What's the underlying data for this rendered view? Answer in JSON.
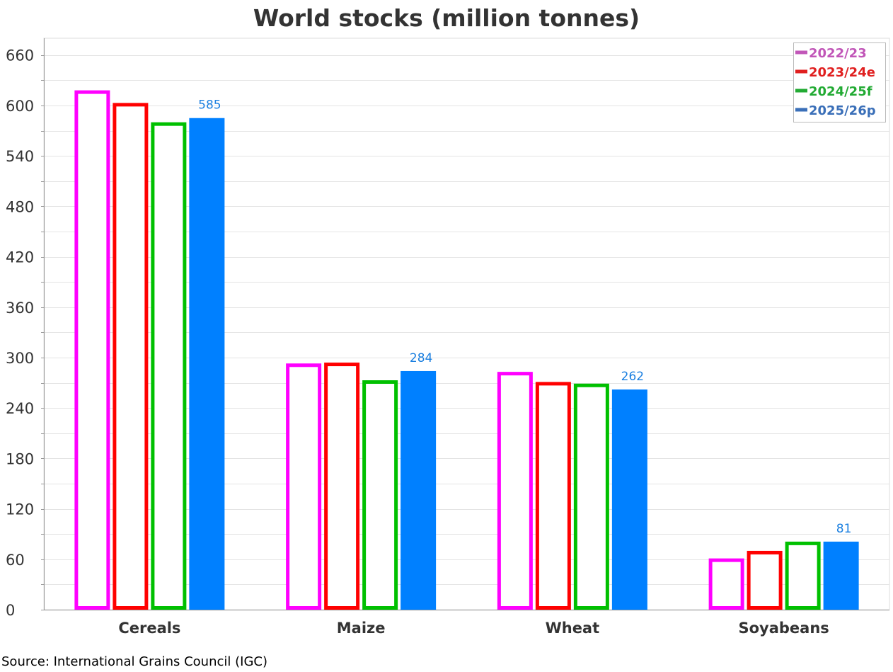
{
  "chart_data": {
    "type": "bar",
    "title": "World stocks (million tonnes)",
    "xlabel": "",
    "ylabel": "",
    "categories": [
      "Cereals",
      "Maize",
      "Wheat",
      "Soyabeans"
    ],
    "ylim": [
      0,
      680
    ],
    "yticks": [
      0,
      60,
      120,
      180,
      240,
      300,
      360,
      420,
      480,
      540,
      600,
      660
    ],
    "grid": true,
    "legend_position": "top-right",
    "series": [
      {
        "name": "2022/23",
        "values": [
          618,
          293,
          283,
          61
        ],
        "color": "#ff00ff",
        "legend_color": "#c156b8",
        "style": "outline"
      },
      {
        "name": "2023/24e",
        "values": [
          603,
          294,
          271,
          70
        ],
        "color": "#ff0000",
        "legend_color": "#e01f1f",
        "style": "outline"
      },
      {
        "name": "2024/25f",
        "values": [
          580,
          273,
          269,
          81
        ],
        "color": "#00c000",
        "legend_color": "#22aa33",
        "style": "outline"
      },
      {
        "name": "2025/26p",
        "values": [
          585,
          284,
          262,
          81
        ],
        "color": "#0080ff",
        "legend_color": "#3a6fb8",
        "style": "filled",
        "show_labels": true
      }
    ]
  },
  "source": "Source: International Grains Council (IGC)"
}
